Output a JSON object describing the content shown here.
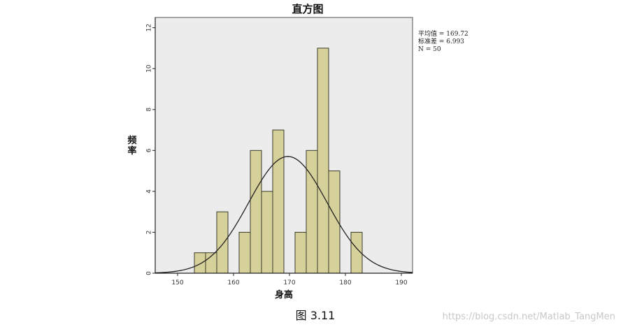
{
  "chart_data": {
    "type": "bar",
    "title": "直方图",
    "xlabel": "身高",
    "ylabel": "频率",
    "xlim": [
      146,
      192
    ],
    "ylim": [
      0,
      12.5
    ],
    "x_ticks": [
      150,
      160,
      170,
      180,
      190
    ],
    "y_ticks": [
      0,
      2,
      4,
      6,
      8,
      10,
      12
    ],
    "bin_width": 2,
    "bins": [
      {
        "start": 153,
        "end": 155,
        "count": 1
      },
      {
        "start": 155,
        "end": 157,
        "count": 1
      },
      {
        "start": 157,
        "end": 159,
        "count": 3
      },
      {
        "start": 161,
        "end": 163,
        "count": 2
      },
      {
        "start": 163,
        "end": 165,
        "count": 6
      },
      {
        "start": 165,
        "end": 167,
        "count": 4
      },
      {
        "start": 167,
        "end": 169,
        "count": 7
      },
      {
        "start": 171,
        "end": 173,
        "count": 2
      },
      {
        "start": 173,
        "end": 175,
        "count": 6
      },
      {
        "start": 175,
        "end": 177,
        "count": 11
      },
      {
        "start": 177,
        "end": 179,
        "count": 5
      },
      {
        "start": 181,
        "end": 183,
        "count": 2
      }
    ],
    "normal_curve": {
      "mean": 169.72,
      "std": 6.993,
      "n": 50
    },
    "stats_lines": [
      "平均值 = 169.72",
      "标准差 = 6.993",
      "N = 50"
    ],
    "grid": false,
    "colors": {
      "bar_fill": "#d6d09a",
      "bar_stroke": "#3a3a2a",
      "plot_bg": "#ececec",
      "curve": "#222222"
    }
  },
  "caption": "图 3.11",
  "watermark": "https://blog.csdn.net/Matlab_TangMen"
}
